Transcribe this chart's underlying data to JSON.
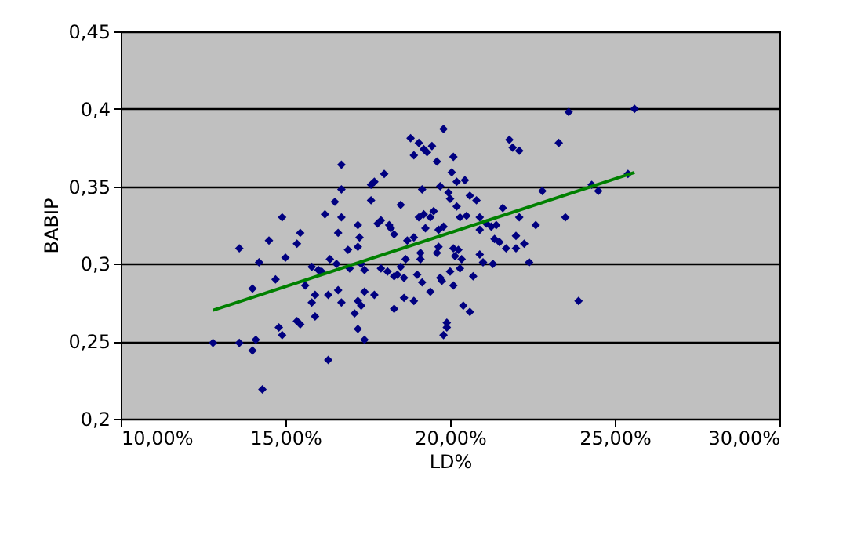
{
  "chart_data": {
    "type": "scatter",
    "xlabel": "LD%",
    "ylabel": "BABIP",
    "xlim": [
      10,
      30
    ],
    "xticks": [
      {
        "value": 10,
        "label": "10,00%"
      },
      {
        "value": 15,
        "label": "15,00%"
      },
      {
        "value": 20,
        "label": "20,00%"
      },
      {
        "value": 25,
        "label": "25,00%"
      },
      {
        "value": 30,
        "label": "30,00%"
      }
    ],
    "ylim": [
      0.2,
      0.45
    ],
    "yticks": [
      {
        "value": 0.2,
        "label": "0,2"
      },
      {
        "value": 0.25,
        "label": "0,25"
      },
      {
        "value": 0.3,
        "label": "0,3"
      },
      {
        "value": 0.35,
        "label": "0,35"
      },
      {
        "value": 0.4,
        "label": "0,4"
      },
      {
        "value": 0.45,
        "label": "0,45"
      }
    ],
    "grid": "y",
    "series": [
      {
        "color": "#000080",
        "marker": "diamond",
        "x": [
          12.8,
          13.6,
          13.6,
          14.0,
          14.0,
          14.1,
          14.2,
          14.3,
          14.5,
          14.7,
          14.8,
          14.9,
          14.9,
          15.0,
          15.35,
          15.45,
          15.35,
          15.45,
          15.6,
          15.8,
          15.8,
          15.9,
          15.9,
          16.0,
          16.1,
          16.2,
          16.3,
          16.3,
          16.35,
          16.5,
          16.55,
          16.6,
          16.6,
          16.7,
          16.7,
          16.7,
          16.7,
          16.9,
          16.95,
          17.1,
          17.2,
          17.2,
          17.2,
          17.2,
          17.25,
          17.3,
          17.3,
          17.4,
          17.4,
          17.4,
          17.6,
          17.6,
          17.7,
          17.7,
          17.8,
          17.9,
          17.9,
          18.0,
          18.1,
          18.15,
          18.2,
          18.3,
          18.3,
          18.3,
          18.4,
          18.5,
          18.5,
          18.6,
          18.6,
          18.65,
          18.7,
          18.8,
          18.9,
          18.9,
          18.9,
          19.0,
          19.05,
          19.05,
          19.1,
          19.1,
          19.15,
          19.15,
          19.2,
          19.2,
          19.25,
          19.3,
          19.4,
          19.4,
          19.45,
          19.5,
          19.6,
          19.6,
          19.65,
          19.65,
          19.7,
          19.7,
          19.75,
          19.8,
          19.8,
          19.8,
          19.9,
          19.9,
          19.95,
          20.0,
          20.0,
          20.05,
          20.1,
          20.1,
          20.1,
          20.15,
          20.2,
          20.2,
          20.25,
          20.3,
          20.3,
          20.35,
          20.4,
          20.45,
          20.5,
          20.6,
          20.6,
          20.7,
          20.8,
          20.9,
          20.9,
          20.9,
          21.0,
          21.1,
          21.25,
          21.3,
          21.35,
          21.4,
          21.5,
          21.6,
          21.7,
          21.8,
          21.9,
          22.0,
          22.0,
          22.1,
          22.1,
          22.25,
          22.4,
          22.6,
          22.8,
          23.3,
          23.5,
          23.6,
          23.9,
          24.3,
          24.5,
          25.4,
          25.6
        ],
        "values": [
          0.249,
          0.31,
          0.249,
          0.284,
          0.244,
          0.251,
          0.301,
          0.219,
          0.315,
          0.29,
          0.259,
          0.254,
          0.33,
          0.304,
          0.313,
          0.32,
          0.263,
          0.261,
          0.286,
          0.298,
          0.275,
          0.266,
          0.28,
          0.296,
          0.295,
          0.332,
          0.238,
          0.28,
          0.303,
          0.34,
          0.3,
          0.32,
          0.283,
          0.364,
          0.348,
          0.33,
          0.275,
          0.309,
          0.297,
          0.268,
          0.325,
          0.311,
          0.276,
          0.258,
          0.317,
          0.3,
          0.273,
          0.251,
          0.282,
          0.296,
          0.351,
          0.341,
          0.353,
          0.28,
          0.326,
          0.328,
          0.297,
          0.358,
          0.295,
          0.325,
          0.323,
          0.292,
          0.271,
          0.319,
          0.293,
          0.338,
          0.298,
          0.278,
          0.291,
          0.303,
          0.315,
          0.381,
          0.37,
          0.317,
          0.276,
          0.293,
          0.33,
          0.378,
          0.303,
          0.307,
          0.288,
          0.348,
          0.374,
          0.332,
          0.323,
          0.372,
          0.282,
          0.33,
          0.376,
          0.334,
          0.307,
          0.366,
          0.311,
          0.322,
          0.35,
          0.291,
          0.289,
          0.387,
          0.324,
          0.254,
          0.262,
          0.259,
          0.346,
          0.295,
          0.342,
          0.359,
          0.369,
          0.286,
          0.31,
          0.305,
          0.353,
          0.337,
          0.309,
          0.33,
          0.297,
          0.303,
          0.273,
          0.354,
          0.331,
          0.269,
          0.344,
          0.292,
          0.341,
          0.33,
          0.322,
          0.306,
          0.301,
          0.326,
          0.324,
          0.3,
          0.316,
          0.325,
          0.314,
          0.336,
          0.31,
          0.38,
          0.375,
          0.318,
          0.31,
          0.373,
          0.33,
          0.313,
          0.301,
          0.325,
          0.347,
          0.378,
          0.33,
          0.398,
          0.276,
          0.351,
          0.347,
          0.358,
          0.4
        ]
      },
      {
        "type": "line",
        "color": "#008000",
        "x": [
          12.8,
          25.6
        ],
        "values": [
          0.27,
          0.359
        ],
        "line_style": "solid"
      }
    ]
  }
}
